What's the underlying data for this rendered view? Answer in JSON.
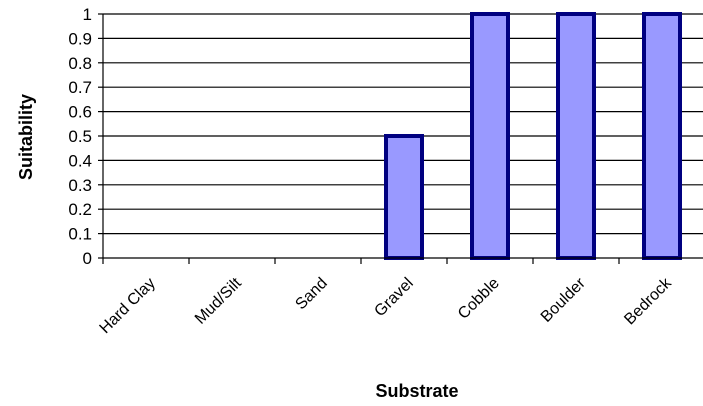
{
  "chart_data": {
    "type": "bar",
    "title": "",
    "xlabel": "Substrate",
    "ylabel": "Suitability",
    "categories": [
      "Hard Clay",
      "Mud/Silt",
      "Sand",
      "Gravel",
      "Cobble",
      "Boulder",
      "Bedrock"
    ],
    "values": [
      0,
      0,
      0,
      0.5,
      1,
      1,
      1
    ],
    "ylim": [
      0,
      1
    ],
    "yticks": [
      "0",
      "0.1",
      "0.2",
      "0.3",
      "0.4",
      "0.5",
      "0.6",
      "0.7",
      "0.8",
      "0.9",
      "1"
    ],
    "grid": true,
    "legend": "none",
    "colors": {
      "bar_fill": "#9999ff",
      "bar_stroke": "#000080",
      "grid": "#000000",
      "axis": "#000000"
    }
  }
}
